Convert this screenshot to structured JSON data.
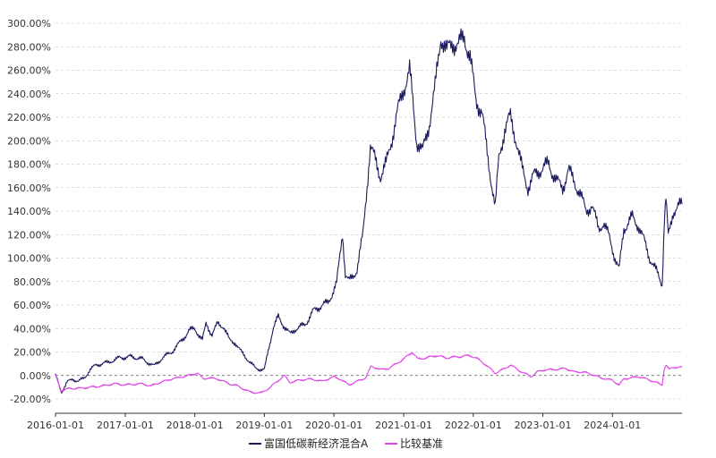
{
  "chart_data": {
    "type": "line",
    "ylim": [
      -20,
      300
    ],
    "y_ticks": [
      -20,
      0,
      20,
      40,
      60,
      80,
      100,
      120,
      140,
      160,
      180,
      200,
      220,
      240,
      260,
      280,
      300
    ],
    "y_tick_labels": [
      "-20.00%",
      "0.00%",
      "20.00%",
      "40.00%",
      "60.00%",
      "80.00%",
      "100.00%",
      "120.00%",
      "140.00%",
      "160.00%",
      "180.00%",
      "200.00%",
      "220.00%",
      "240.00%",
      "260.00%",
      "280.00%",
      "300.00%"
    ],
    "x_range": [
      "2016-01-01",
      "2024-12-31"
    ],
    "x_ticks": [
      "2016-01-01",
      "2017-01-01",
      "2018-01-01",
      "2019-01-01",
      "2020-01-01",
      "2021-01-01",
      "2022-01-01",
      "2023-01-01",
      "2024-01-01"
    ],
    "grid": true,
    "legend_position": "bottom",
    "series": [
      {
        "name": "富国低碳新经济混合A",
        "color": "#1a1a5e",
        "points": [
          [
            "2016-01-01",
            0
          ],
          [
            "2016-02-01",
            -14
          ],
          [
            "2016-03-01",
            -6
          ],
          [
            "2016-04-01",
            -3
          ],
          [
            "2016-05-01",
            -5
          ],
          [
            "2016-06-01",
            -2
          ],
          [
            "2016-07-01",
            5
          ],
          [
            "2016-08-01",
            9
          ],
          [
            "2016-10-01",
            11
          ],
          [
            "2016-12-01",
            15
          ],
          [
            "2017-02-01",
            16
          ],
          [
            "2017-04-01",
            14
          ],
          [
            "2017-06-01",
            8
          ],
          [
            "2017-07-15",
            15
          ],
          [
            "2017-09-01",
            20
          ],
          [
            "2017-10-15",
            28
          ],
          [
            "2017-12-01",
            38
          ],
          [
            "2018-01-01",
            40
          ],
          [
            "2018-02-10",
            30
          ],
          [
            "2018-03-01",
            44
          ],
          [
            "2018-04-01",
            35
          ],
          [
            "2018-05-01",
            44
          ],
          [
            "2018-06-01",
            42
          ],
          [
            "2018-07-01",
            30
          ],
          [
            "2018-08-01",
            28
          ],
          [
            "2018-09-01",
            20
          ],
          [
            "2018-10-15",
            12
          ],
          [
            "2018-11-15",
            6
          ],
          [
            "2019-01-01",
            5
          ],
          [
            "2019-02-15",
            40
          ],
          [
            "2019-03-15",
            50
          ],
          [
            "2019-04-15",
            42
          ],
          [
            "2019-05-15",
            35
          ],
          [
            "2019-06-15",
            40
          ],
          [
            "2019-08-01",
            43
          ],
          [
            "2019-09-15",
            55
          ],
          [
            "2019-11-01",
            60
          ],
          [
            "2019-12-01",
            62
          ],
          [
            "2020-01-15",
            78
          ],
          [
            "2020-02-15",
            122
          ],
          [
            "2020-03-01",
            85
          ],
          [
            "2020-03-20",
            80
          ],
          [
            "2020-05-01",
            90
          ],
          [
            "2020-06-01",
            120
          ],
          [
            "2020-07-10",
            195
          ],
          [
            "2020-08-01",
            185
          ],
          [
            "2020-09-01",
            170
          ],
          [
            "2020-10-01",
            180
          ],
          [
            "2020-12-01",
            225
          ],
          [
            "2021-01-01",
            245
          ],
          [
            "2021-02-01",
            260
          ],
          [
            "2021-03-10",
            200
          ],
          [
            "2021-04-10",
            190
          ],
          [
            "2021-05-15",
            215
          ],
          [
            "2021-06-15",
            245
          ],
          [
            "2021-07-15",
            290
          ],
          [
            "2021-08-15",
            275
          ],
          [
            "2021-09-15",
            285
          ],
          [
            "2021-10-15",
            280
          ],
          [
            "2021-11-15",
            290
          ],
          [
            "2021-12-15",
            270
          ],
          [
            "2022-01-15",
            235
          ],
          [
            "2022-02-15",
            225
          ],
          [
            "2022-03-15",
            190
          ],
          [
            "2022-04-26",
            142
          ],
          [
            "2022-05-15",
            185
          ],
          [
            "2022-06-15",
            210
          ],
          [
            "2022-07-15",
            220
          ],
          [
            "2022-08-15",
            200
          ],
          [
            "2022-09-15",
            175
          ],
          [
            "2022-10-15",
            160
          ],
          [
            "2022-11-15",
            170
          ],
          [
            "2022-12-15",
            175
          ],
          [
            "2023-02-01",
            180
          ],
          [
            "2023-03-15",
            165
          ],
          [
            "2023-04-15",
            160
          ],
          [
            "2023-05-15",
            175
          ],
          [
            "2023-06-15",
            165
          ],
          [
            "2023-07-15",
            155
          ],
          [
            "2023-08-15",
            140
          ],
          [
            "2023-09-15",
            145
          ],
          [
            "2023-10-20",
            125
          ],
          [
            "2023-11-15",
            130
          ],
          [
            "2023-12-15",
            118
          ],
          [
            "2024-01-15",
            100
          ],
          [
            "2024-02-05",
            90
          ],
          [
            "2024-03-01",
            125
          ],
          [
            "2024-04-15",
            135
          ],
          [
            "2024-05-15",
            128
          ],
          [
            "2024-06-15",
            115
          ],
          [
            "2024-07-15",
            100
          ],
          [
            "2024-08-15",
            90
          ],
          [
            "2024-09-18",
            78
          ],
          [
            "2024-09-30",
            135
          ],
          [
            "2024-10-08",
            150
          ],
          [
            "2024-10-20",
            118
          ],
          [
            "2024-11-15",
            140
          ],
          [
            "2024-12-31",
            146
          ]
        ]
      },
      {
        "name": "比较基准",
        "color": "#e040e8",
        "points": [
          [
            "2016-01-01",
            0
          ],
          [
            "2016-02-01",
            -13
          ],
          [
            "2016-03-15",
            -11
          ],
          [
            "2016-05-01",
            -11
          ],
          [
            "2016-07-01",
            -10
          ],
          [
            "2016-09-01",
            -9
          ],
          [
            "2016-11-01",
            -7
          ],
          [
            "2017-01-01",
            -8
          ],
          [
            "2017-04-01",
            -7
          ],
          [
            "2017-05-15",
            -9
          ],
          [
            "2017-07-01",
            -6
          ],
          [
            "2017-09-01",
            -3
          ],
          [
            "2017-11-01",
            -1
          ],
          [
            "2018-01-15",
            2
          ],
          [
            "2018-02-15",
            -3
          ],
          [
            "2018-03-15",
            -2
          ],
          [
            "2018-05-01",
            -3
          ],
          [
            "2018-07-01",
            -7
          ],
          [
            "2018-08-15",
            -9
          ],
          [
            "2018-10-15",
            -14
          ],
          [
            "2018-12-15",
            -15
          ],
          [
            "2019-02-01",
            -10
          ],
          [
            "2019-04-15",
            0
          ],
          [
            "2019-05-15",
            -6
          ],
          [
            "2019-07-01",
            -4
          ],
          [
            "2019-09-01",
            -3
          ],
          [
            "2019-11-01",
            -5
          ],
          [
            "2019-12-31",
            -1
          ],
          [
            "2020-02-01",
            -3
          ],
          [
            "2020-03-20",
            -8
          ],
          [
            "2020-05-01",
            -5
          ],
          [
            "2020-06-15",
            -2
          ],
          [
            "2020-07-15",
            8
          ],
          [
            "2020-09-01",
            5
          ],
          [
            "2020-10-15",
            6
          ],
          [
            "2020-12-31",
            14
          ],
          [
            "2021-02-15",
            20
          ],
          [
            "2021-03-15",
            14
          ],
          [
            "2021-05-01",
            15
          ],
          [
            "2021-06-15",
            17
          ],
          [
            "2021-08-15",
            15
          ],
          [
            "2021-10-15",
            16
          ],
          [
            "2021-12-15",
            17
          ],
          [
            "2022-01-15",
            15
          ],
          [
            "2022-03-01",
            10
          ],
          [
            "2022-04-26",
            2
          ],
          [
            "2022-06-15",
            6
          ],
          [
            "2022-07-15",
            9
          ],
          [
            "2022-09-01",
            4
          ],
          [
            "2022-10-31",
            -1
          ],
          [
            "2022-12-01",
            3
          ],
          [
            "2023-01-15",
            5
          ],
          [
            "2023-03-01",
            5
          ],
          [
            "2023-05-01",
            6
          ],
          [
            "2023-06-15",
            3
          ],
          [
            "2023-08-01",
            3
          ],
          [
            "2023-09-15",
            1
          ],
          [
            "2023-10-31",
            -2
          ],
          [
            "2023-12-31",
            -4
          ],
          [
            "2024-02-05",
            -8
          ],
          [
            "2024-03-01",
            -3
          ],
          [
            "2024-05-15",
            -1
          ],
          [
            "2024-07-01",
            -3
          ],
          [
            "2024-09-18",
            -8
          ],
          [
            "2024-09-28",
            5
          ],
          [
            "2024-10-08",
            9
          ],
          [
            "2024-10-25",
            5
          ],
          [
            "2024-11-15",
            7
          ],
          [
            "2024-12-31",
            7
          ]
        ]
      }
    ]
  }
}
